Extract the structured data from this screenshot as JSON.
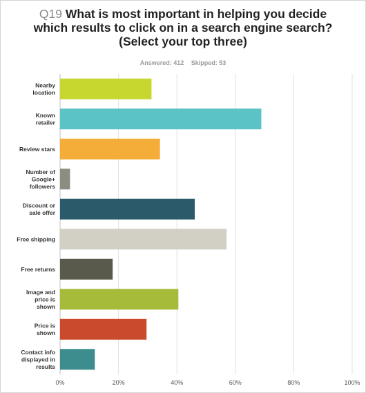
{
  "header": {
    "question_number": "Q19",
    "question_text": "What is most important in helping you decide which results to click on in a search engine search? (Select your top three)",
    "answered": "Answered: 412",
    "skipped": "Skipped: 53"
  },
  "chart_data": {
    "type": "bar",
    "orientation": "horizontal",
    "categories": [
      [
        "Nearby",
        "location"
      ],
      [
        "Known",
        "retailer"
      ],
      [
        "Review stars"
      ],
      [
        "Number of",
        "Google+",
        "followers"
      ],
      [
        "Discount or",
        "sale offer"
      ],
      [
        "Free shipping"
      ],
      [
        "Free returns"
      ],
      [
        "Image and",
        "price is",
        "shown"
      ],
      [
        "Price is",
        "shown"
      ],
      [
        "Contact info",
        "displayed in",
        "results"
      ]
    ],
    "values": [
      31.3,
      68.9,
      34.2,
      3.4,
      46.1,
      57.0,
      18.0,
      40.5,
      29.6,
      11.9
    ],
    "colors": [
      "#c8d630",
      "#5bc2c6",
      "#f4ad38",
      "#8c8c80",
      "#2b5b6b",
      "#d2d0c4",
      "#5a5a4c",
      "#a7bb3a",
      "#c94a2c",
      "#3d8d8e"
    ],
    "xlim": [
      0,
      100
    ],
    "xticks": [
      "0%",
      "20%",
      "40%",
      "60%",
      "80%",
      "100%"
    ],
    "grid": true,
    "legend": "none"
  }
}
